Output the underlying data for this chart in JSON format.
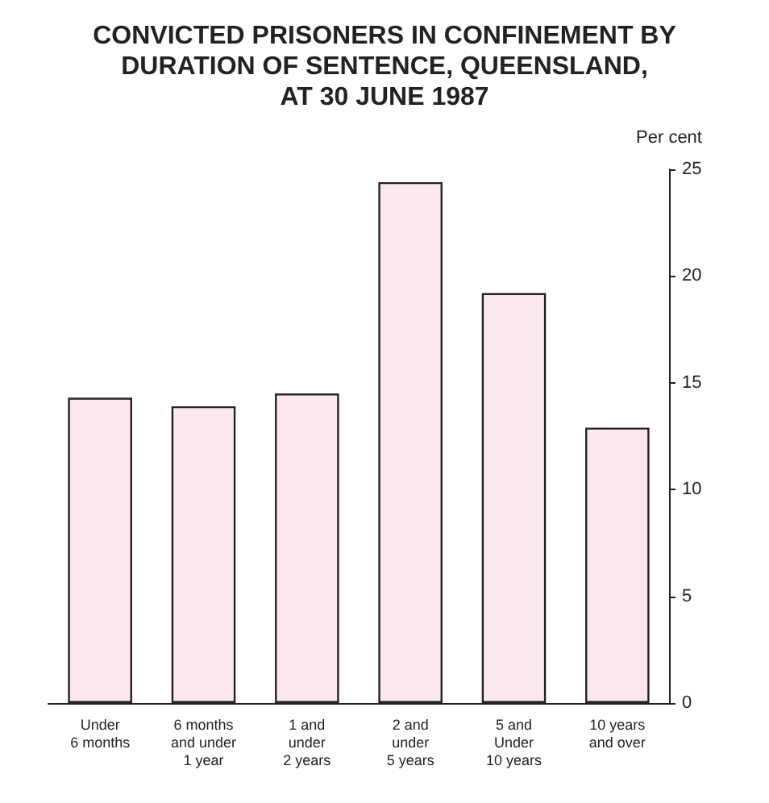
{
  "chart_data": {
    "type": "bar",
    "title": "CONVICTED PRISONERS IN CONFINEMENT BY\nDURATION OF SENTENCE, QUEENSLAND,\nAT 30 JUNE 1987",
    "ylabel": "Per cent",
    "categories": [
      "Under\n6 months",
      "6 months\nand under\n1 year",
      "1 and\nunder\n2 years",
      "2 and\nunder\n5 years",
      "5 and\nUnder\n10 years",
      "10 years\nand over"
    ],
    "values": [
      14.3,
      13.9,
      14.5,
      24.4,
      19.2,
      12.9
    ],
    "color": "#fbe8ee",
    "ylim": [
      0,
      25
    ],
    "yticks": [
      0,
      5,
      10,
      15,
      20,
      25
    ]
  }
}
